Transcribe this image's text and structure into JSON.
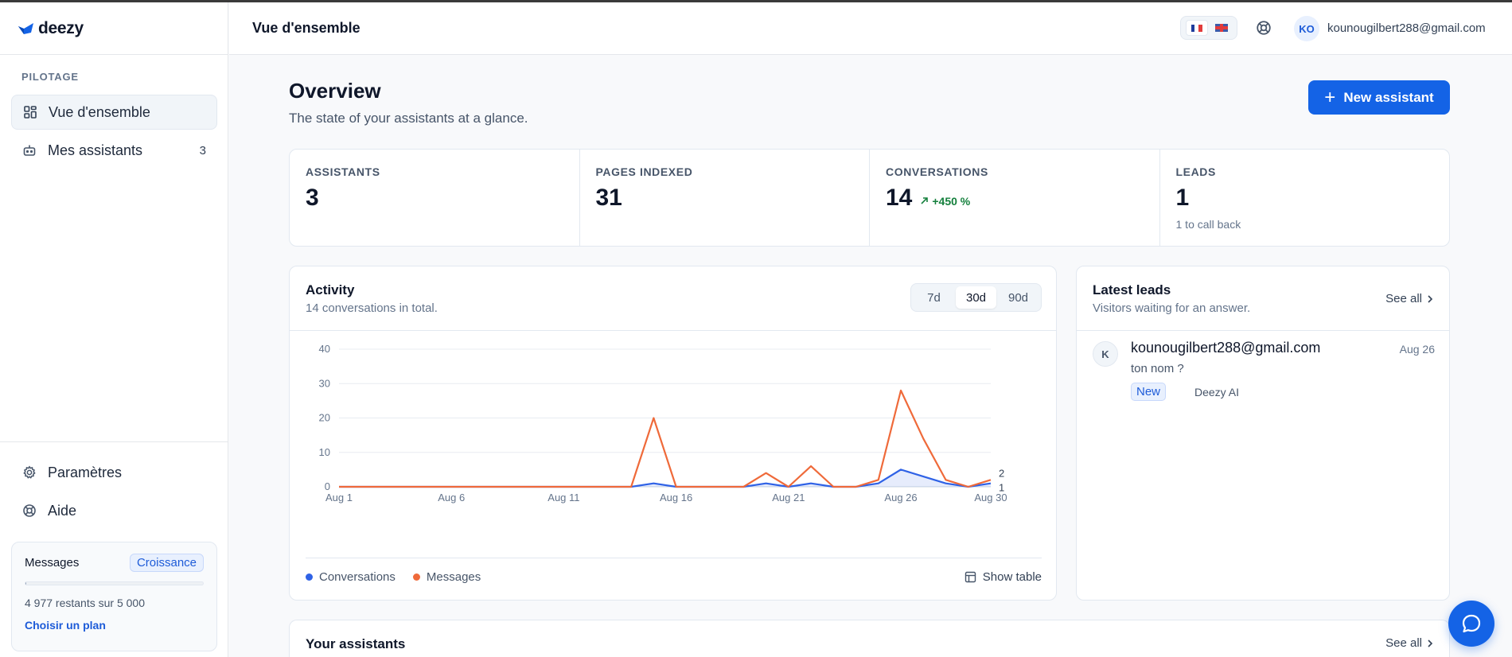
{
  "app": {
    "brand": "deezy"
  },
  "sidebar": {
    "section_label": "PILOTAGE",
    "items": [
      {
        "label": "Vue d'ensemble",
        "active": true,
        "icon": "grid-icon"
      },
      {
        "label": "Mes assistants",
        "count": "3",
        "icon": "bot-icon"
      }
    ],
    "bottom_items": [
      {
        "label": "Paramètres",
        "icon": "gear-icon"
      },
      {
        "label": "Aide",
        "icon": "lifebuoy-icon"
      }
    ],
    "plan": {
      "title": "Messages",
      "badge": "Croissance",
      "remaining": "4 977 restants sur 5 000",
      "usage_fraction": 0.005,
      "link": "Choisir un plan"
    }
  },
  "topbar": {
    "title": "Vue d'ensemble",
    "avatar_initials": "KO",
    "user_email": "kounougilbert288@gmail.com"
  },
  "main": {
    "title": "Overview",
    "subtitle": "The state of your assistants at a glance.",
    "new_button": "New assistant",
    "stats": [
      {
        "label": "ASSISTANTS",
        "value": "3"
      },
      {
        "label": "PAGES INDEXED",
        "value": "31"
      },
      {
        "label": "CONVERSATIONS",
        "value": "14",
        "trend": "+450 %"
      },
      {
        "label": "LEADS",
        "value": "1",
        "sub": "1 to call back"
      }
    ],
    "activity": {
      "title": "Activity",
      "subtitle": "14 conversations in total.",
      "ranges": [
        "7d",
        "30d",
        "90d"
      ],
      "active_range": "30d",
      "show_table": "Show table"
    },
    "leads": {
      "title": "Latest leads",
      "subtitle": "Visitors waiting for an answer.",
      "see_all": "See all",
      "items": [
        {
          "initial": "K",
          "email": "kounougilbert288@gmail.com",
          "date": "Aug 26",
          "message": "ton nom ?",
          "badge": "New",
          "source": "Deezy AI"
        }
      ]
    },
    "assistants": {
      "title": "Your assistants",
      "see_all": "See all"
    }
  },
  "colors": {
    "accent": "#1463e6",
    "conversations": "#2f62e6",
    "messages": "#ef6a3a"
  },
  "chart_data": {
    "type": "line",
    "x": [
      "Aug 1",
      "Aug 2",
      "Aug 3",
      "Aug 4",
      "Aug 5",
      "Aug 6",
      "Aug 7",
      "Aug 8",
      "Aug 9",
      "Aug 10",
      "Aug 11",
      "Aug 12",
      "Aug 13",
      "Aug 14",
      "Aug 15",
      "Aug 16",
      "Aug 17",
      "Aug 18",
      "Aug 19",
      "Aug 20",
      "Aug 21",
      "Aug 22",
      "Aug 23",
      "Aug 24",
      "Aug 25",
      "Aug 26",
      "Aug 27",
      "Aug 28",
      "Aug 29",
      "Aug 30"
    ],
    "x_tick_labels": [
      "Aug 1",
      "Aug 6",
      "Aug 11",
      "Aug 16",
      "Aug 21",
      "Aug 26",
      "Aug 30"
    ],
    "y_ticks": [
      0,
      10,
      20,
      30,
      40
    ],
    "ylim": [
      0,
      40
    ],
    "grid": true,
    "legend": "bottom-left",
    "series": [
      {
        "name": "Conversations",
        "values": [
          0,
          0,
          0,
          0,
          0,
          0,
          0,
          0,
          0,
          0,
          0,
          0,
          0,
          0,
          1,
          0,
          0,
          0,
          0,
          1,
          0,
          1,
          0,
          0,
          1,
          5,
          3,
          1,
          0,
          1
        ],
        "end_label": "1"
      },
      {
        "name": "Messages",
        "values": [
          0,
          0,
          0,
          0,
          0,
          0,
          0,
          0,
          0,
          0,
          0,
          0,
          0,
          0,
          20,
          0,
          0,
          0,
          0,
          4,
          0,
          6,
          0,
          0,
          2,
          28,
          14,
          2,
          0,
          2
        ],
        "end_label": "2"
      }
    ]
  }
}
